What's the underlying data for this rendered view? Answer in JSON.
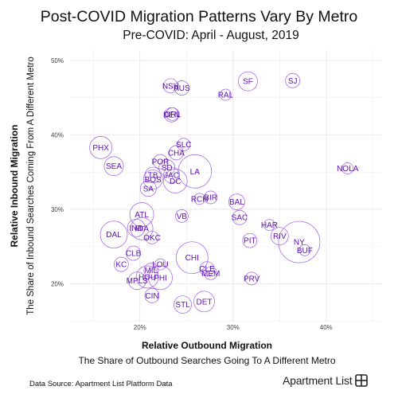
{
  "title": "Post-COVID Migration Patterns Vary By Metro",
  "subtitle": "Pre-COVID: April - August, 2019",
  "source": "Data Source: Apartment List Platform Data",
  "logo_text": "Apartment List",
  "colors": {
    "bubble": "#9b5de5",
    "label": "#5b0fb0",
    "grid": "#e6e6e6"
  },
  "chart_data": {
    "type": "scatter",
    "title": "Post-COVID Migration Patterns Vary By Metro",
    "subtitle": "Pre-COVID: April - August, 2019",
    "xlabel": "Relative Outbound Migration",
    "xlabel_sub": "The Share of Outbound Searches Going To A Different Metro",
    "ylabel": "Relative Inbound Migration",
    "ylabel_sub": "The Share of Inbound Searches Coming From A Different Metro",
    "xlim": [
      0.125,
      0.46
    ],
    "ylim": [
      0.148,
      0.515
    ],
    "xticks": [
      0.2,
      0.3,
      0.4
    ],
    "xtick_labels": [
      "20%",
      "30%",
      "40%"
    ],
    "yticks": [
      0.2,
      0.3,
      0.4,
      0.5
    ],
    "ytick_labels": [
      "20%",
      "30%",
      "40%",
      "50%"
    ],
    "grid": true,
    "points": [
      {
        "label": "NSH",
        "x": 0.233,
        "y": 0.466,
        "size": 9
      },
      {
        "label": "AUS",
        "x": 0.245,
        "y": 0.463,
        "size": 9
      },
      {
        "label": "SF",
        "x": 0.316,
        "y": 0.472,
        "size": 12
      },
      {
        "label": "SJ",
        "x": 0.364,
        "y": 0.473,
        "size": 9
      },
      {
        "label": "RAL",
        "x": 0.292,
        "y": 0.454,
        "size": 7
      },
      {
        "label": "DEN",
        "x": 0.234,
        "y": 0.427,
        "size": 9
      },
      {
        "label": "ORL",
        "x": 0.235,
        "y": 0.428,
        "size": 8
      },
      {
        "label": "SLC",
        "x": 0.247,
        "y": 0.387,
        "size": 8
      },
      {
        "label": "PHX",
        "x": 0.158,
        "y": 0.383,
        "size": 14
      },
      {
        "label": "CHA",
        "x": 0.239,
        "y": 0.376,
        "size": 9
      },
      {
        "label": "NOLA",
        "x": 0.423,
        "y": 0.355,
        "size": 7
      },
      {
        "label": "SEA",
        "x": 0.172,
        "y": 0.358,
        "size": 12
      },
      {
        "label": "POR",
        "x": 0.222,
        "y": 0.364,
        "size": 9
      },
      {
        "label": "SD",
        "x": 0.229,
        "y": 0.356,
        "size": 10
      },
      {
        "label": "LA",
        "x": 0.259,
        "y": 0.351,
        "size": 21
      },
      {
        "label": "TB",
        "x": 0.214,
        "y": 0.346,
        "size": 10
      },
      {
        "label": "JAC",
        "x": 0.234,
        "y": 0.346,
        "size": 10
      },
      {
        "label": "BOS",
        "x": 0.214,
        "y": 0.34,
        "size": 12
      },
      {
        "label": "DC",
        "x": 0.238,
        "y": 0.338,
        "size": 15
      },
      {
        "label": "SA",
        "x": 0.209,
        "y": 0.328,
        "size": 10
      },
      {
        "label": "RCH",
        "x": 0.264,
        "y": 0.314,
        "size": 7
      },
      {
        "label": "BIR",
        "x": 0.276,
        "y": 0.316,
        "size": 8
      },
      {
        "label": "BAL",
        "x": 0.304,
        "y": 0.31,
        "size": 10
      },
      {
        "label": "ATL",
        "x": 0.202,
        "y": 0.293,
        "size": 15
      },
      {
        "label": "VB",
        "x": 0.245,
        "y": 0.291,
        "size": 8
      },
      {
        "label": "SAC",
        "x": 0.307,
        "y": 0.289,
        "size": 9
      },
      {
        "label": "HAR",
        "x": 0.339,
        "y": 0.279,
        "size": 7
      },
      {
        "label": "IND",
        "x": 0.196,
        "y": 0.275,
        "size": 11
      },
      {
        "label": "MIA",
        "x": 0.202,
        "y": 0.274,
        "size": 14
      },
      {
        "label": "DAL",
        "x": 0.172,
        "y": 0.266,
        "size": 17
      },
      {
        "label": "RIV",
        "x": 0.35,
        "y": 0.264,
        "size": 11
      },
      {
        "label": "NY",
        "x": 0.371,
        "y": 0.256,
        "size": 26
      },
      {
        "label": "OKC",
        "x": 0.213,
        "y": 0.262,
        "size": 8
      },
      {
        "label": "PIT",
        "x": 0.318,
        "y": 0.258,
        "size": 9
      },
      {
        "label": "BUF",
        "x": 0.377,
        "y": 0.245,
        "size": 7
      },
      {
        "label": "CLB",
        "x": 0.193,
        "y": 0.241,
        "size": 9
      },
      {
        "label": "CHI",
        "x": 0.256,
        "y": 0.235,
        "size": 20
      },
      {
        "label": "KC",
        "x": 0.18,
        "y": 0.226,
        "size": 9
      },
      {
        "label": "LOU",
        "x": 0.222,
        "y": 0.226,
        "size": 7
      },
      {
        "label": "CLE",
        "x": 0.272,
        "y": 0.22,
        "size": 9
      },
      {
        "label": "MIL",
        "x": 0.212,
        "y": 0.218,
        "size": 9
      },
      {
        "label": "MEM",
        "x": 0.276,
        "y": 0.214,
        "size": 8
      },
      {
        "label": "HOU",
        "x": 0.208,
        "y": 0.209,
        "size": 14
      },
      {
        "label": "PHI",
        "x": 0.222,
        "y": 0.208,
        "size": 15
      },
      {
        "label": "PRV",
        "x": 0.32,
        "y": 0.207,
        "size": 8
      },
      {
        "label": "MPLS",
        "x": 0.197,
        "y": 0.204,
        "size": 11
      },
      {
        "label": "CIN",
        "x": 0.213,
        "y": 0.184,
        "size": 9
      },
      {
        "label": "DET",
        "x": 0.269,
        "y": 0.176,
        "size": 13
      },
      {
        "label": "STL",
        "x": 0.246,
        "y": 0.172,
        "size": 11
      }
    ]
  }
}
